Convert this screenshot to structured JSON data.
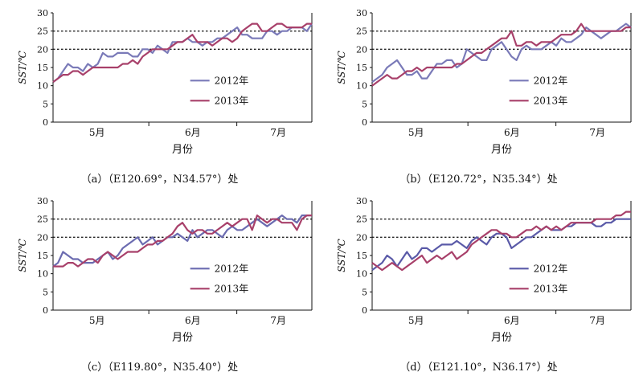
{
  "chart_data": [
    {
      "type": "line",
      "caption": "（a）（E120.69°，N34.57°）处",
      "ylabel": "SST/℃",
      "xlabel": "月份",
      "x_tick_labels": [
        "5月",
        "6月",
        "7月"
      ],
      "y_ticks": [
        0,
        5,
        10,
        15,
        20,
        25,
        30
      ],
      "ylim": [
        0,
        30
      ],
      "reference_lines": [
        20,
        25
      ],
      "legend_position": "center",
      "series": [
        {
          "name": "2012年",
          "color": "#7a7ab8",
          "values": [
            11,
            12,
            14,
            16,
            15,
            15,
            14,
            16,
            15,
            16,
            19,
            18,
            18,
            19,
            19,
            19,
            18,
            18,
            20,
            20,
            19,
            21,
            20,
            19,
            22,
            22,
            22,
            23,
            22,
            22,
            21,
            22,
            22,
            23,
            23,
            24,
            25,
            26,
            24,
            24,
            23,
            23,
            23,
            25,
            25,
            24,
            25,
            25,
            26,
            26,
            26,
            25,
            27
          ]
        },
        {
          "name": "2013年",
          "color": "#a8406a",
          "values": [
            11,
            12,
            13,
            13,
            14,
            14,
            13,
            14,
            15,
            15,
            15,
            15,
            15,
            15,
            16,
            16,
            17,
            16,
            18,
            19,
            20,
            20,
            20,
            20,
            21,
            22,
            22,
            23,
            24,
            22,
            22,
            22,
            21,
            22,
            23,
            23,
            22,
            23,
            25,
            26,
            27,
            27,
            25,
            25,
            26,
            27,
            27,
            26,
            26,
            26,
            26,
            27,
            27
          ]
        }
      ]
    },
    {
      "type": "line",
      "caption": "（b）（E120.72°，N35.34°）处",
      "ylabel": "SST/℃",
      "xlabel": "月份",
      "x_tick_labels": [
        "5月",
        "6月",
        "7月"
      ],
      "y_ticks": [
        0,
        5,
        10,
        15,
        20,
        25,
        30
      ],
      "ylim": [
        0,
        30
      ],
      "reference_lines": [
        20,
        25
      ],
      "legend_position": "center",
      "series": [
        {
          "name": "2012年",
          "color": "#7a7ab8",
          "values": [
            11,
            12,
            13,
            15,
            16,
            17,
            15,
            13,
            13,
            14,
            12,
            12,
            14,
            16,
            16,
            17,
            17,
            15,
            16,
            20,
            19,
            18,
            17,
            17,
            20,
            21,
            22,
            20,
            18,
            17,
            20,
            21,
            20,
            20,
            20,
            21,
            22,
            21,
            23,
            22,
            22,
            23,
            24,
            26,
            25,
            24,
            23,
            24,
            25,
            25,
            26,
            27,
            26
          ]
        },
        {
          "name": "2013年",
          "color": "#a8406a",
          "values": [
            10,
            11,
            12,
            13,
            12,
            12,
            13,
            14,
            14,
            15,
            14,
            15,
            15,
            15,
            15,
            15,
            15,
            16,
            16,
            17,
            18,
            19,
            19,
            20,
            21,
            22,
            23,
            23,
            25,
            21,
            21,
            22,
            22,
            21,
            22,
            22,
            22,
            23,
            24,
            24,
            24,
            25,
            27,
            25,
            25,
            25,
            25,
            25,
            25,
            25,
            25,
            26,
            26
          ]
        }
      ]
    },
    {
      "type": "line",
      "caption": "（c）（E119.80°，N35.40°）处",
      "ylabel": "SST/℃",
      "xlabel": "月份",
      "x_tick_labels": [
        "5月",
        "6月",
        "7月"
      ],
      "y_ticks": [
        0,
        5,
        10,
        15,
        20,
        25,
        30
      ],
      "ylim": [
        0,
        30
      ],
      "reference_lines": [
        20,
        25
      ],
      "legend_position": "center",
      "series": [
        {
          "name": "2012年",
          "color": "#6b6bb0",
          "values": [
            12,
            13,
            16,
            15,
            14,
            14,
            13,
            13,
            13,
            14,
            15,
            16,
            14,
            15,
            17,
            18,
            19,
            20,
            18,
            19,
            20,
            18,
            19,
            20,
            20,
            21,
            20,
            19,
            22,
            20,
            21,
            22,
            22,
            21,
            20,
            22,
            23,
            22,
            22,
            23,
            24,
            25,
            24,
            23,
            24,
            25,
            26,
            25,
            25,
            24,
            26,
            26,
            26
          ]
        },
        {
          "name": "2013年",
          "color": "#a8406a",
          "values": [
            12,
            12,
            12,
            13,
            13,
            12,
            13,
            14,
            14,
            13,
            15,
            16,
            15,
            14,
            15,
            16,
            16,
            16,
            17,
            18,
            18,
            19,
            19,
            20,
            21,
            23,
            24,
            22,
            21,
            22,
            22,
            21,
            21,
            22,
            23,
            24,
            23,
            24,
            25,
            25,
            22,
            26,
            25,
            24,
            25,
            25,
            24,
            24,
            24,
            22,
            25,
            26,
            26
          ]
        }
      ]
    },
    {
      "type": "line",
      "caption": "（d）（E121.10°，N36.17°）处",
      "ylabel": "SST/℃",
      "xlabel": "月份",
      "x_tick_labels": [
        "5月",
        "6月",
        "7月"
      ],
      "y_ticks": [
        0,
        5,
        10,
        15,
        20,
        25,
        30
      ],
      "ylim": [
        0,
        30
      ],
      "reference_lines": [
        20,
        25
      ],
      "legend_position": "center",
      "series": [
        {
          "name": "2012年",
          "color": "#5a5aa8",
          "values": [
            11,
            12,
            13,
            15,
            14,
            12,
            14,
            16,
            14,
            15,
            17,
            17,
            16,
            17,
            18,
            18,
            18,
            19,
            18,
            17,
            19,
            20,
            19,
            18,
            20,
            21,
            21,
            20,
            17,
            18,
            19,
            20,
            20,
            21,
            22,
            23,
            22,
            22,
            22,
            23,
            23,
            24,
            24,
            24,
            24,
            23,
            23,
            24,
            24,
            25,
            25,
            25,
            25
          ]
        },
        {
          "name": "2013年",
          "color": "#a8406a",
          "values": [
            13,
            12,
            11,
            12,
            13,
            12,
            11,
            12,
            13,
            14,
            15,
            13,
            14,
            15,
            14,
            15,
            16,
            14,
            15,
            16,
            18,
            19,
            20,
            21,
            22,
            22,
            21,
            21,
            20,
            20,
            21,
            22,
            22,
            23,
            22,
            23,
            22,
            23,
            22,
            23,
            24,
            24,
            24,
            24,
            24,
            25,
            25,
            25,
            25,
            26,
            26,
            27,
            27
          ]
        }
      ]
    }
  ]
}
